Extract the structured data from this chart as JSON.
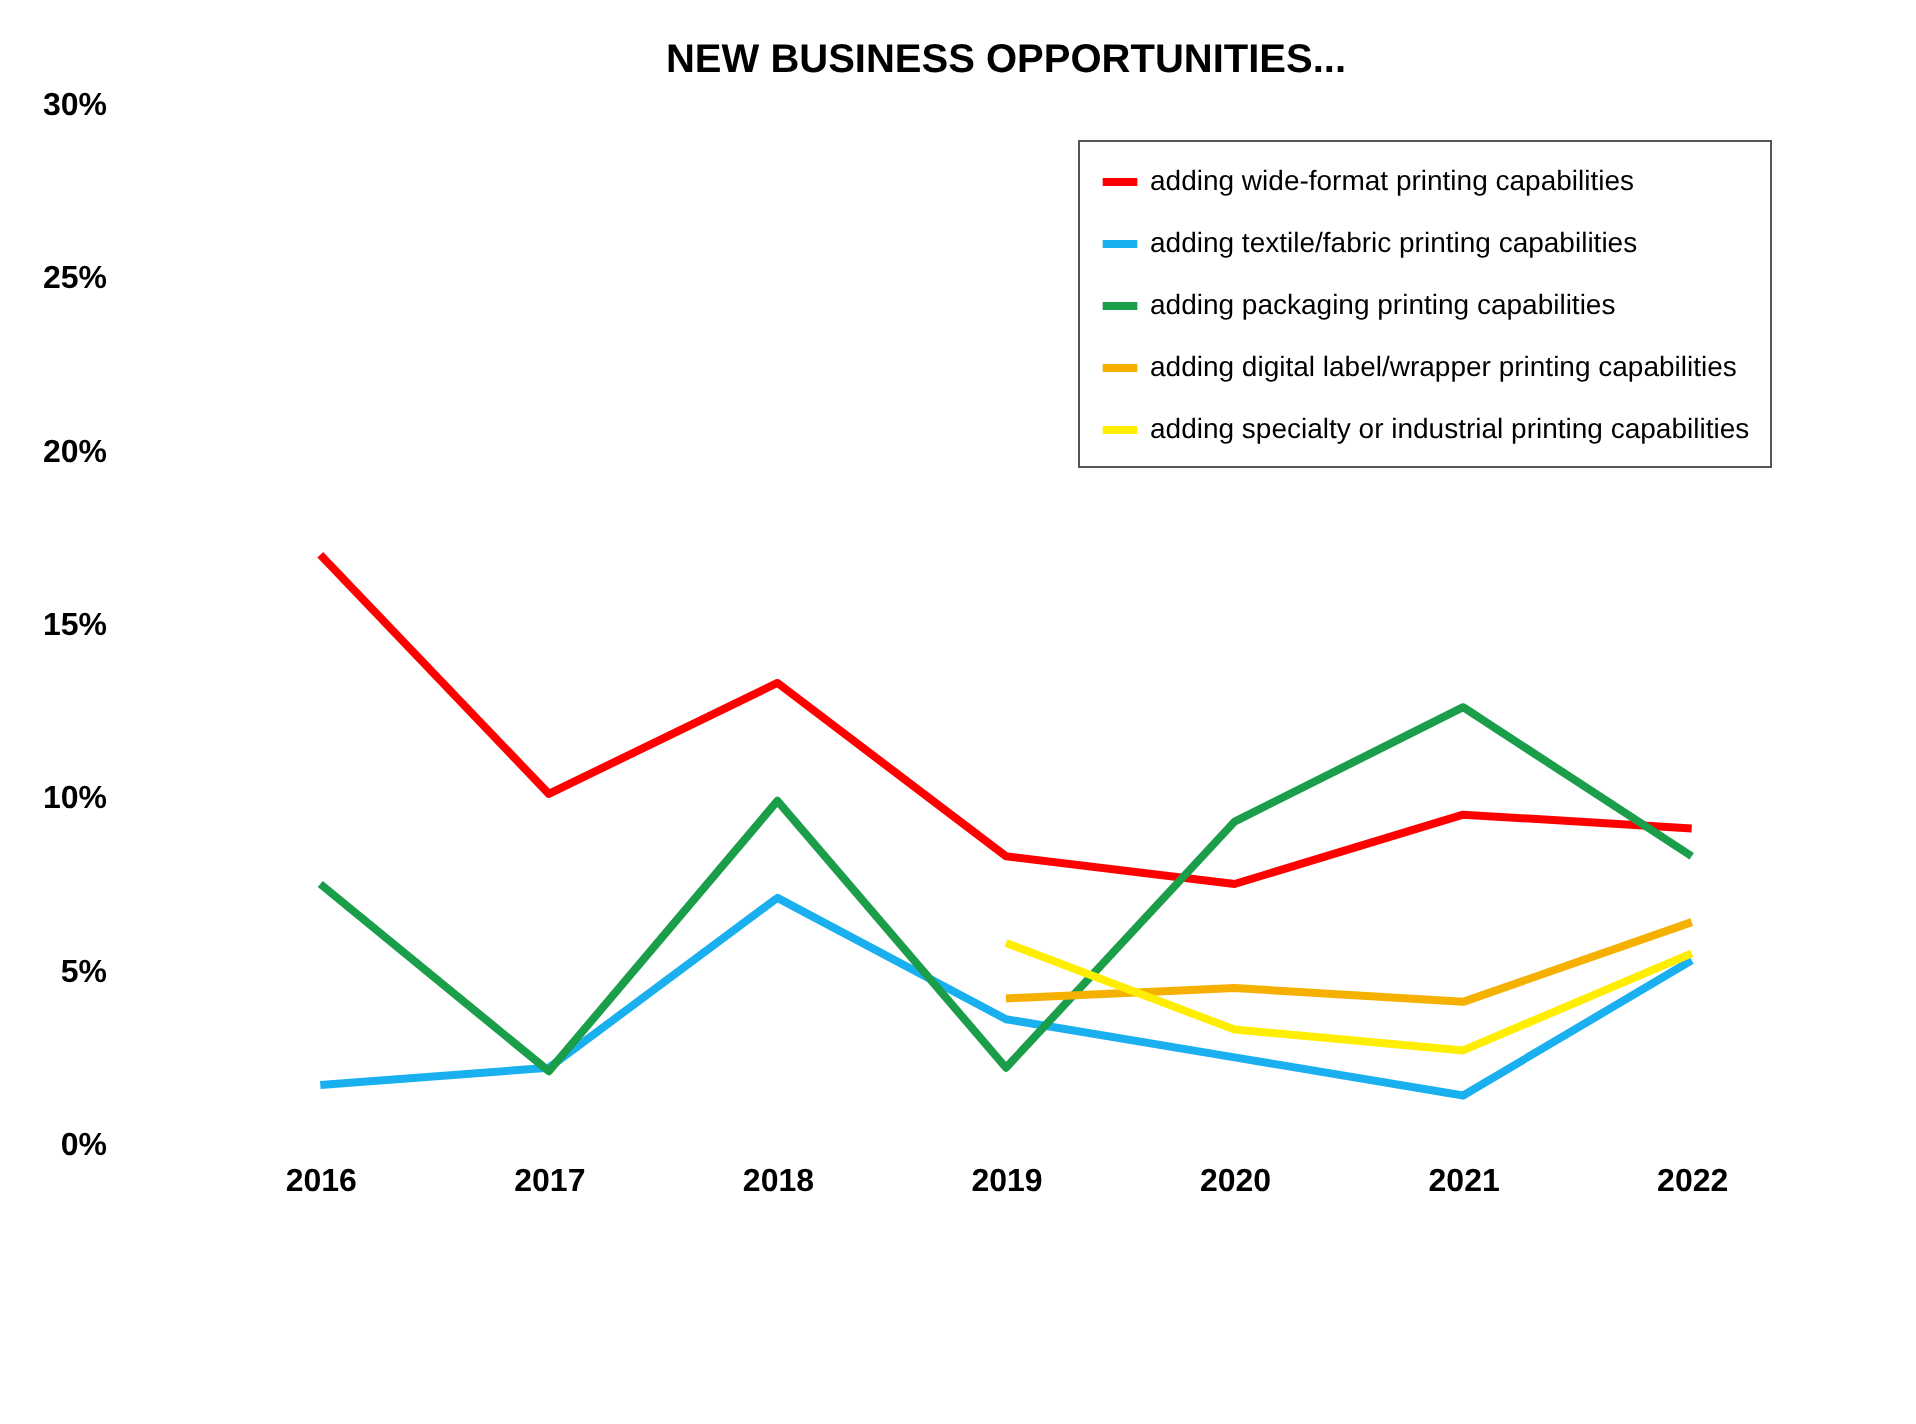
{
  "chart_data": {
    "type": "line",
    "title": "NEW BUSINESS OPPORTUNITIES...",
    "categories": [
      "2016",
      "2017",
      "2018",
      "2019",
      "2020",
      "2021",
      "2022"
    ],
    "ylim": [
      0,
      30
    ],
    "yticks": [
      {
        "value": 0,
        "label": "0%"
      },
      {
        "value": 5,
        "label": "5%"
      },
      {
        "value": 10,
        "label": "10%"
      },
      {
        "value": 15,
        "label": "15%"
      },
      {
        "value": 20,
        "label": "20%"
      },
      {
        "value": 25,
        "label": "25%"
      },
      {
        "value": 30,
        "label": "30%"
      }
    ],
    "grid": false,
    "legend": "top right",
    "marker": "none",
    "line_style": "solid",
    "series": [
      {
        "name": "adding wide-format printing capabilities",
        "color": "#ff0000",
        "values": [
          17.0,
          10.1,
          13.3,
          8.3,
          7.5,
          9.5,
          9.1
        ]
      },
      {
        "name": "adding textile/fabric printing capabilities",
        "color": "#1ab0f0",
        "values": [
          1.7,
          2.2,
          7.1,
          3.6,
          2.5,
          1.4,
          5.3
        ]
      },
      {
        "name": "adding packaging printing capabilities",
        "color": "#1a9e4a",
        "values": [
          7.5,
          2.1,
          9.9,
          2.2,
          9.3,
          12.6,
          8.3
        ]
      },
      {
        "name": "adding digital label/wrapper printing capabilities",
        "color": "#f5b000",
        "values": [
          null,
          null,
          null,
          4.2,
          4.5,
          4.1,
          6.4
        ]
      },
      {
        "name": "adding specialty or industrial printing capabilities",
        "color": "#ffee00",
        "values": [
          null,
          null,
          null,
          5.8,
          3.3,
          2.7,
          5.5
        ]
      }
    ]
  }
}
